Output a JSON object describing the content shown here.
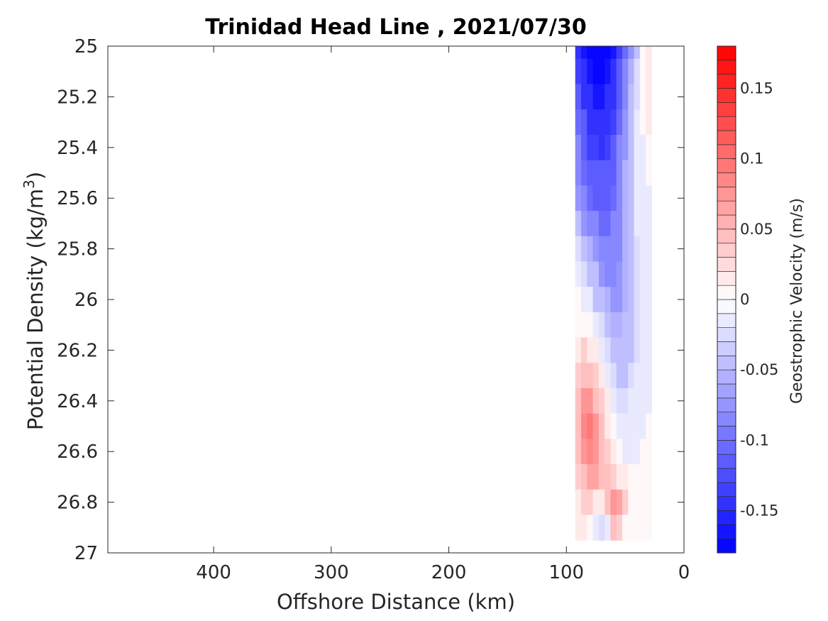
{
  "chart_data": {
    "type": "heatmap",
    "title": "Trinidad Head Line , 2021/07/30",
    "xlabel": "Offshore Distance (km)",
    "ylabel_main": "Potential Density (kg/m",
    "ylabel_sup": "3",
    "ylabel_close": ")",
    "xlim": [
      490,
      0
    ],
    "ylim": [
      25,
      27
    ],
    "xticks": [
      400,
      300,
      200,
      100,
      0
    ],
    "yticks": [
      25,
      25.2,
      25.4,
      25.6,
      25.8,
      26,
      26.2,
      26.4,
      26.6,
      26.8,
      27
    ],
    "ytick_labels": [
      "25",
      "25.2",
      "25.4",
      "25.6",
      "25.8",
      "26",
      "26.2",
      "26.4",
      "26.6",
      "26.8",
      "27"
    ],
    "grid": false,
    "colorbar": {
      "label": "Geostrophic Velocity (m/s)",
      "range": [
        -0.18,
        0.18
      ],
      "levels": 36,
      "ticks": [
        -0.15,
        -0.1,
        -0.05,
        0,
        0.05,
        0.1,
        0.15
      ],
      "tick_labels": [
        "-0.15",
        "-0.1",
        "-0.05",
        "0",
        "0.05",
        "0.1",
        "0.15"
      ],
      "negative_color": "#0000ff",
      "zero_color": "#ffffff",
      "positive_color": "#ff0000"
    },
    "x_grid": [
      90,
      85,
      80,
      75,
      70,
      65,
      60,
      55,
      50,
      45,
      40,
      35,
      30
    ],
    "y_grid": [
      25,
      25.1,
      25.2,
      25.3,
      25.4,
      25.5,
      25.6,
      25.7,
      25.8,
      25.9,
      26,
      26.1,
      26.2,
      26.3,
      26.4,
      26.5,
      26.6,
      26.7,
      26.8,
      26.9
    ],
    "velocity": [
      [
        -0.14,
        -0.16,
        -0.17,
        -0.17,
        -0.18,
        -0.17,
        -0.16,
        -0.13,
        -0.1,
        -0.07,
        -0.04,
        0.0,
        0.02
      ],
      [
        -0.13,
        -0.15,
        -0.16,
        -0.17,
        -0.17,
        -0.16,
        -0.15,
        -0.12,
        -0.09,
        -0.06,
        -0.03,
        0.0,
        0.02
      ],
      [
        -0.12,
        -0.14,
        -0.15,
        -0.16,
        -0.16,
        -0.15,
        -0.14,
        -0.11,
        -0.08,
        -0.05,
        -0.03,
        0.0,
        0.01
      ],
      [
        -0.1,
        -0.12,
        -0.14,
        -0.15,
        -0.15,
        -0.14,
        -0.13,
        -0.1,
        -0.07,
        -0.05,
        -0.02,
        0.0,
        0.01
      ],
      [
        -0.09,
        -0.11,
        -0.13,
        -0.13,
        -0.14,
        -0.13,
        -0.12,
        -0.09,
        -0.07,
        -0.04,
        -0.02,
        -0.01,
        0.0
      ],
      [
        -0.08,
        -0.1,
        -0.11,
        -0.12,
        -0.12,
        -0.12,
        -0.11,
        -0.09,
        -0.06,
        -0.04,
        -0.02,
        -0.01,
        0.0
      ],
      [
        -0.07,
        -0.09,
        -0.1,
        -0.11,
        -0.11,
        -0.11,
        -0.1,
        -0.08,
        -0.06,
        -0.04,
        -0.02,
        -0.01,
        -0.01
      ],
      [
        -0.05,
        -0.07,
        -0.08,
        -0.09,
        -0.1,
        -0.1,
        -0.09,
        -0.08,
        -0.06,
        -0.04,
        -0.02,
        -0.01,
        -0.01
      ],
      [
        -0.03,
        -0.05,
        -0.06,
        -0.07,
        -0.08,
        -0.09,
        -0.09,
        -0.08,
        -0.06,
        -0.04,
        -0.03,
        -0.02,
        -0.01
      ],
      [
        -0.01,
        -0.03,
        -0.04,
        -0.05,
        -0.07,
        -0.08,
        -0.08,
        -0.07,
        -0.06,
        -0.04,
        -0.03,
        -0.02,
        -0.01
      ],
      [
        0.0,
        -0.01,
        -0.02,
        -0.04,
        -0.05,
        -0.06,
        -0.07,
        -0.07,
        -0.06,
        -0.04,
        -0.03,
        -0.02,
        -0.01
      ],
      [
        0.0,
        0.0,
        0.0,
        -0.01,
        -0.03,
        -0.05,
        -0.06,
        -0.06,
        -0.05,
        -0.04,
        -0.03,
        -0.02,
        -0.01
      ],
      [
        0.02,
        0.03,
        0.02,
        0.01,
        -0.01,
        -0.03,
        -0.05,
        -0.05,
        -0.05,
        -0.04,
        -0.03,
        -0.02,
        -0.01
      ],
      [
        0.03,
        0.05,
        0.05,
        0.03,
        0.01,
        -0.01,
        -0.03,
        -0.04,
        -0.04,
        -0.03,
        -0.02,
        -0.02,
        -0.01
      ],
      [
        0.04,
        0.07,
        0.07,
        0.05,
        0.03,
        0.01,
        -0.02,
        -0.03,
        -0.03,
        -0.02,
        -0.02,
        -0.01,
        -0.01
      ],
      [
        0.04,
        0.08,
        0.09,
        0.07,
        0.05,
        0.02,
        0.0,
        -0.02,
        -0.02,
        -0.02,
        -0.01,
        -0.01,
        0.0
      ],
      [
        0.04,
        0.07,
        0.08,
        0.07,
        0.05,
        0.03,
        0.01,
        0.0,
        -0.01,
        -0.01,
        -0.01,
        0.0,
        0.0
      ],
      [
        0.03,
        0.05,
        0.06,
        0.06,
        0.05,
        0.04,
        0.03,
        0.02,
        0.01,
        0.0,
        0.0,
        0.0,
        0.0
      ],
      [
        0.02,
        0.03,
        0.03,
        0.02,
        0.02,
        0.04,
        0.07,
        0.06,
        0.03,
        0.0,
        0.0,
        0.0,
        0.0
      ],
      [
        0.01,
        0.01,
        0.0,
        -0.02,
        -0.03,
        -0.01,
        0.04,
        0.03,
        0.0,
        0.0,
        0.0,
        0.0,
        0.0
      ]
    ]
  }
}
